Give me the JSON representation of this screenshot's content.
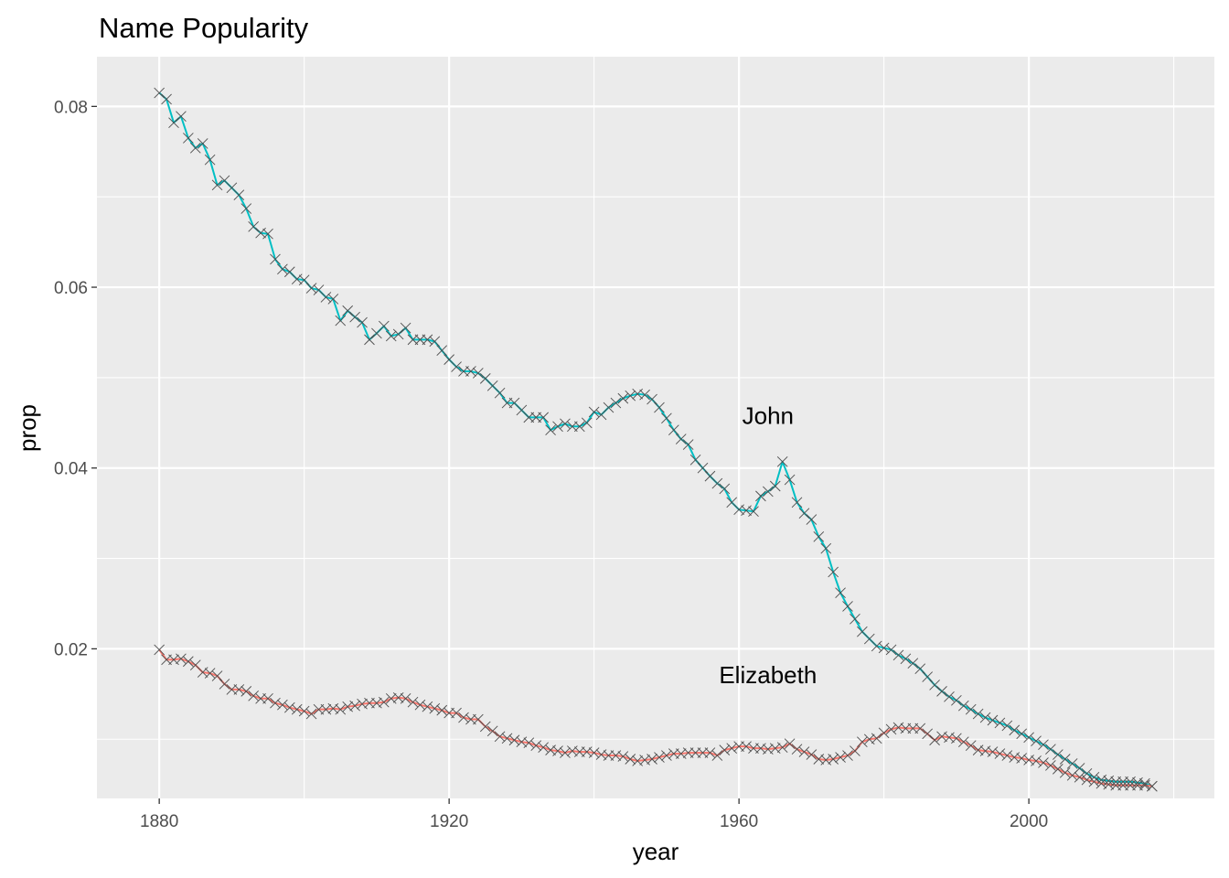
{
  "chart_data": {
    "type": "line",
    "title": "Name Popularity",
    "xlabel": "year",
    "ylabel": "prop",
    "xlim": [
      1871.4,
      2025.6
    ],
    "ylim": [
      0.00345,
      0.0855
    ],
    "x_ticks": [
      1880,
      1920,
      1960,
      2000
    ],
    "x_tick_labels": [
      "1880",
      "1920",
      "1960",
      "2000"
    ],
    "x_minor_ticks": [
      1900,
      1940,
      1980,
      2020
    ],
    "y_ticks": [
      0.02,
      0.04,
      0.06,
      0.08
    ],
    "y_tick_labels": [
      "0.02",
      "0.04",
      "0.06",
      "0.08"
    ],
    "y_minor_ticks": [
      0.01,
      0.03,
      0.05,
      0.07
    ],
    "grid": true,
    "legend": "none",
    "marker": "x",
    "colors": {
      "John": "#00BFC4",
      "Elizabeth": "#F8766D",
      "marker": "#4d4d4d",
      "panel": "#ebebeb",
      "grid": "#ffffff"
    },
    "annotations": [
      {
        "text": "John",
        "x": 1964,
        "y": 0.0458
      },
      {
        "text": "Elizabeth",
        "x": 1964,
        "y": 0.0171
      }
    ],
    "series": [
      {
        "name": "John",
        "x": [
          1880,
          1881,
          1882,
          1883,
          1884,
          1885,
          1886,
          1887,
          1888,
          1889,
          1890,
          1891,
          1892,
          1893,
          1894,
          1895,
          1896,
          1897,
          1898,
          1899,
          1900,
          1901,
          1902,
          1903,
          1904,
          1905,
          1906,
          1907,
          1908,
          1909,
          1910,
          1911,
          1912,
          1913,
          1914,
          1915,
          1916,
          1917,
          1918,
          1919,
          1920,
          1921,
          1922,
          1923,
          1924,
          1925,
          1926,
          1927,
          1928,
          1929,
          1930,
          1931,
          1932,
          1933,
          1934,
          1935,
          1936,
          1937,
          1938,
          1939,
          1940,
          1941,
          1942,
          1943,
          1944,
          1945,
          1946,
          1947,
          1948,
          1949,
          1950,
          1951,
          1952,
          1953,
          1954,
          1955,
          1956,
          1957,
          1958,
          1959,
          1960,
          1961,
          1962,
          1963,
          1964,
          1965,
          1966,
          1967,
          1968,
          1969,
          1970,
          1971,
          1972,
          1973,
          1974,
          1975,
          1976,
          1977,
          1978,
          1979,
          1980,
          1981,
          1982,
          1983,
          1984,
          1985,
          1986,
          1987,
          1988,
          1989,
          1990,
          1991,
          1992,
          1993,
          1994,
          1995,
          1996,
          1997,
          1998,
          1999,
          2000,
          2001,
          2002,
          2003,
          2004,
          2005,
          2006,
          2007,
          2008,
          2009,
          2010,
          2011,
          2012,
          2013,
          2014,
          2015,
          2016,
          2017
        ],
        "y": [
          0.0815,
          0.0808,
          0.0782,
          0.0789,
          0.0765,
          0.0754,
          0.0759,
          0.0741,
          0.0713,
          0.0718,
          0.071,
          0.0702,
          0.0687,
          0.0667,
          0.066,
          0.0659,
          0.0631,
          0.062,
          0.0617,
          0.0609,
          0.0608,
          0.0599,
          0.0597,
          0.0589,
          0.0587,
          0.0563,
          0.0574,
          0.0567,
          0.0561,
          0.0542,
          0.0549,
          0.0557,
          0.0546,
          0.0548,
          0.0555,
          0.0542,
          0.0542,
          0.0542,
          0.054,
          0.053,
          0.052,
          0.0512,
          0.0507,
          0.0507,
          0.0505,
          0.0499,
          0.0491,
          0.0483,
          0.0472,
          0.0472,
          0.0464,
          0.0456,
          0.0456,
          0.0456,
          0.0442,
          0.0446,
          0.0449,
          0.0446,
          0.0446,
          0.045,
          0.0462,
          0.0459,
          0.0467,
          0.0472,
          0.0477,
          0.048,
          0.0482,
          0.0481,
          0.0476,
          0.0467,
          0.0455,
          0.0442,
          0.0432,
          0.0426,
          0.0409,
          0.04,
          0.0391,
          0.0383,
          0.0377,
          0.0362,
          0.0354,
          0.0353,
          0.0352,
          0.0369,
          0.0374,
          0.038,
          0.0407,
          0.0387,
          0.0362,
          0.035,
          0.0343,
          0.0324,
          0.0311,
          0.0285,
          0.0262,
          0.0247,
          0.0233,
          0.0219,
          0.0211,
          0.0203,
          0.0201,
          0.0199,
          0.0193,
          0.0189,
          0.0184,
          0.0178,
          0.0169,
          0.016,
          0.0153,
          0.0147,
          0.0143,
          0.0137,
          0.0133,
          0.0128,
          0.0124,
          0.0121,
          0.0118,
          0.0115,
          0.011,
          0.0106,
          0.0102,
          0.0098,
          0.0094,
          0.0089,
          0.0083,
          0.0078,
          0.0073,
          0.0068,
          0.0062,
          0.0058,
          0.0055,
          0.0054,
          0.0053,
          0.0053,
          0.0053,
          0.0052,
          0.0051,
          0.0048
        ]
      },
      {
        "name": "Elizabeth",
        "x": [
          1880,
          1881,
          1882,
          1883,
          1884,
          1885,
          1886,
          1887,
          1888,
          1889,
          1890,
          1891,
          1892,
          1893,
          1894,
          1895,
          1896,
          1897,
          1898,
          1899,
          1900,
          1901,
          1902,
          1903,
          1904,
          1905,
          1906,
          1907,
          1908,
          1909,
          1910,
          1911,
          1912,
          1913,
          1914,
          1915,
          1916,
          1917,
          1918,
          1919,
          1920,
          1921,
          1922,
          1923,
          1924,
          1925,
          1926,
          1927,
          1928,
          1929,
          1930,
          1931,
          1932,
          1933,
          1934,
          1935,
          1936,
          1937,
          1938,
          1939,
          1940,
          1941,
          1942,
          1943,
          1944,
          1945,
          1946,
          1947,
          1948,
          1949,
          1950,
          1951,
          1952,
          1953,
          1954,
          1955,
          1956,
          1957,
          1958,
          1959,
          1960,
          1961,
          1962,
          1963,
          1964,
          1965,
          1966,
          1967,
          1968,
          1969,
          1970,
          1971,
          1972,
          1973,
          1974,
          1975,
          1976,
          1977,
          1978,
          1979,
          1980,
          1981,
          1982,
          1983,
          1984,
          1985,
          1986,
          1987,
          1988,
          1989,
          1990,
          1991,
          1992,
          1993,
          1994,
          1995,
          1996,
          1997,
          1998,
          1999,
          2000,
          2001,
          2002,
          2003,
          2004,
          2005,
          2006,
          2007,
          2008,
          2009,
          2010,
          2011,
          2012,
          2013,
          2014,
          2015,
          2016,
          2017
        ],
        "y": [
          0.0199,
          0.0188,
          0.0188,
          0.0189,
          0.0186,
          0.0182,
          0.0174,
          0.0173,
          0.017,
          0.0161,
          0.0155,
          0.0155,
          0.0153,
          0.0148,
          0.0145,
          0.0145,
          0.014,
          0.0138,
          0.0135,
          0.0133,
          0.0131,
          0.0128,
          0.0133,
          0.0133,
          0.0134,
          0.0133,
          0.0136,
          0.0137,
          0.0139,
          0.014,
          0.014,
          0.0141,
          0.0145,
          0.0146,
          0.0145,
          0.0141,
          0.0138,
          0.0136,
          0.0134,
          0.0132,
          0.0129,
          0.0129,
          0.0124,
          0.0122,
          0.0122,
          0.0114,
          0.0109,
          0.0103,
          0.0101,
          0.0099,
          0.0097,
          0.0096,
          0.0093,
          0.0091,
          0.0088,
          0.0087,
          0.0085,
          0.0087,
          0.0086,
          0.0086,
          0.0085,
          0.0083,
          0.0082,
          0.0082,
          0.0081,
          0.0078,
          0.0076,
          0.0077,
          0.0078,
          0.008,
          0.0082,
          0.0084,
          0.0084,
          0.0085,
          0.0085,
          0.0085,
          0.0085,
          0.0082,
          0.0088,
          0.009,
          0.0092,
          0.0092,
          0.009,
          0.009,
          0.0089,
          0.009,
          0.0091,
          0.0095,
          0.0089,
          0.0086,
          0.0083,
          0.0078,
          0.0077,
          0.0078,
          0.008,
          0.0082,
          0.0087,
          0.0097,
          0.01,
          0.0101,
          0.0107,
          0.0111,
          0.0113,
          0.0112,
          0.0112,
          0.0112,
          0.0106,
          0.0099,
          0.0103,
          0.0102,
          0.0101,
          0.0097,
          0.0093,
          0.0088,
          0.0087,
          0.0086,
          0.0084,
          0.0082,
          0.008,
          0.0079,
          0.0077,
          0.0076,
          0.0074,
          0.0071,
          0.0067,
          0.0063,
          0.006,
          0.0058,
          0.0055,
          0.0053,
          0.0051,
          0.005,
          0.0049,
          0.0049,
          0.0049,
          0.0049,
          0.0049,
          0.0048
        ]
      }
    ]
  }
}
